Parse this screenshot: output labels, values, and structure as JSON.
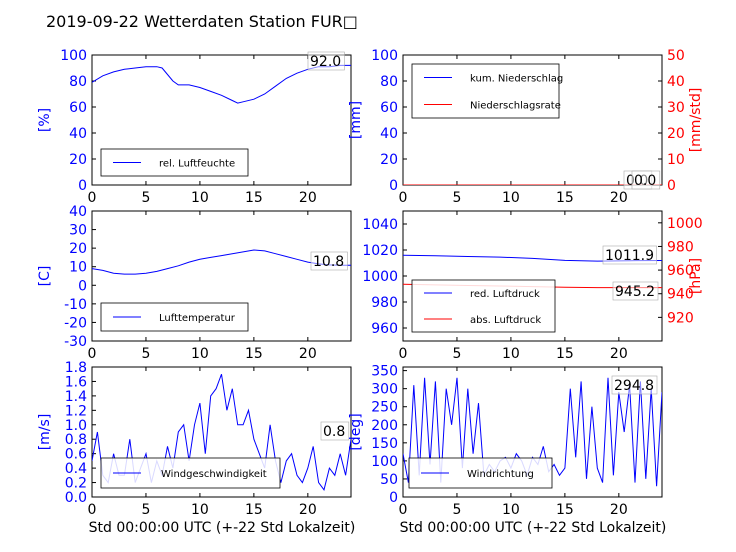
{
  "title": "2019-09-22 Wetterdaten Station FUR□",
  "xlabel": "Std 00:00:00 UTC (+-22 Std Lokalzeit)",
  "colors": {
    "blue": "#0000ff",
    "red": "#ff0000",
    "lightblue": "#8080ff"
  },
  "chart_data": [
    {
      "id": "humidity",
      "type": "line",
      "xlim": [
        0,
        24
      ],
      "xticks": [
        0,
        5,
        10,
        15,
        20
      ],
      "ylim": [
        0,
        100
      ],
      "yticks": [
        0,
        20,
        40,
        60,
        80,
        100
      ],
      "ylabel": "[%]",
      "legend_loc": "lower-left",
      "series": [
        {
          "name": "rel. Luftfeuchte",
          "color": "#0000ff",
          "x": [
            0,
            1,
            2,
            3,
            4,
            5,
            6,
            6.5,
            7,
            7.5,
            8,
            9,
            10,
            11,
            12,
            13,
            13.5,
            14,
            15,
            16,
            17,
            18,
            19,
            20,
            21,
            22,
            23,
            24
          ],
          "y": [
            79,
            84,
            87,
            89,
            90,
            91,
            91,
            90,
            85,
            80,
            77,
            77,
            75,
            72,
            69,
            65,
            63,
            64,
            66,
            70,
            76,
            82,
            86,
            89,
            91,
            91,
            92,
            92
          ]
        }
      ],
      "value_labels": [
        {
          "text": "92.0"
        }
      ]
    },
    {
      "id": "precip",
      "type": "line",
      "xlim": [
        0,
        24
      ],
      "xticks": [
        0,
        5,
        10,
        15,
        20
      ],
      "ylim": [
        0,
        100
      ],
      "yticks": [
        0,
        20,
        40,
        60,
        80,
        100
      ],
      "ylabel": "[mm]",
      "y2lim": [
        0,
        50
      ],
      "y2ticks": [
        0,
        10,
        20,
        30,
        40,
        50
      ],
      "y2label": "[mm/std]",
      "legend_loc": "upper-left",
      "series": [
        {
          "name": "kum. Niederschlag",
          "color": "#0000ff",
          "axis": "left",
          "x": [
            0,
            24
          ],
          "y": [
            0,
            0
          ]
        },
        {
          "name": "Niederschlagsrate",
          "color": "#ff0000",
          "axis": "right",
          "x": [
            0,
            24
          ],
          "y": [
            0,
            0
          ]
        }
      ],
      "value_labels": [
        {
          "text": "0.0"
        },
        {
          "text": "0.0"
        }
      ]
    },
    {
      "id": "temperature",
      "type": "line",
      "xlim": [
        0,
        24
      ],
      "xticks": [
        0,
        5,
        10,
        15,
        20
      ],
      "ylim": [
        -30,
        40
      ],
      "yticks": [
        -30,
        -20,
        -10,
        0,
        10,
        20,
        30,
        40
      ],
      "ylabel": "[C]",
      "legend_loc": "lower-left",
      "series": [
        {
          "name": "Lufttemperatur",
          "color": "#0000ff",
          "x": [
            0,
            1,
            2,
            3,
            4,
            5,
            6,
            7,
            8,
            9,
            10,
            11,
            12,
            13,
            14,
            15,
            16,
            17,
            18,
            19,
            20,
            21,
            22,
            23,
            24
          ],
          "y": [
            9,
            8,
            6.5,
            6,
            6,
            6.5,
            7.5,
            9,
            10.5,
            12.5,
            14,
            15,
            16,
            17,
            18,
            19,
            18.5,
            17,
            15.5,
            14,
            12.5,
            11.5,
            11,
            10.8,
            10.8
          ]
        }
      ],
      "value_labels": [
        {
          "text": "10.8"
        }
      ]
    },
    {
      "id": "pressure",
      "type": "line",
      "xlim": [
        0,
        24
      ],
      "xticks": [
        0,
        5,
        10,
        15,
        20
      ],
      "ylim": [
        950,
        1050
      ],
      "yticks": [
        960,
        980,
        1000,
        1020,
        1040
      ],
      "y2lim": [
        900,
        1010
      ],
      "y2ticks": [
        920,
        940,
        960,
        980,
        1000
      ],
      "y2label": "[hPa]",
      "legend_loc": "lower-left",
      "series": [
        {
          "name": "red. Luftdruck",
          "color": "#0000ff",
          "axis": "left",
          "x": [
            0,
            3,
            6,
            9,
            12,
            15,
            18,
            21,
            24
          ],
          "y": [
            1016,
            1015.5,
            1015,
            1014.5,
            1013.5,
            1012,
            1011.5,
            1011.8,
            1011.9
          ]
        },
        {
          "name": "abs. Luftdruck",
          "color": "#ff0000",
          "axis": "right",
          "x": [
            0,
            3,
            6,
            9,
            12,
            15,
            18,
            21,
            24
          ],
          "y": [
            948,
            947.5,
            947,
            946.5,
            946,
            945.5,
            945.2,
            945.2,
            945.2
          ]
        }
      ],
      "value_labels": [
        {
          "text": "1011.9"
        },
        {
          "text": "945.2"
        }
      ]
    },
    {
      "id": "windspeed",
      "type": "line",
      "xlim": [
        0,
        24
      ],
      "xticks": [
        0,
        5,
        10,
        15,
        20
      ],
      "ylim": [
        0,
        1.8
      ],
      "yticks": [
        0.0,
        0.2,
        0.4,
        0.6,
        0.8,
        1.0,
        1.2,
        1.4,
        1.6,
        1.8
      ],
      "ylabel": "[m/s]",
      "legend_loc": "lower-center",
      "series": [
        {
          "name": "Windgeschwindigkeit",
          "color": "#0000ff",
          "x": [
            0,
            0.5,
            1,
            1.5,
            2,
            2.5,
            3,
            3.5,
            4,
            4.5,
            5,
            5.5,
            6,
            6.5,
            7,
            7.5,
            8,
            8.5,
            9,
            9.5,
            10,
            10.5,
            11,
            11.5,
            12,
            12.5,
            13,
            13.5,
            14,
            14.5,
            15,
            15.5,
            16,
            16.5,
            17,
            17.5,
            18,
            18.5,
            19,
            19.5,
            20,
            20.5,
            21,
            21.5,
            22,
            22.5,
            23,
            23.5,
            24
          ],
          "y": [
            0.5,
            0.9,
            0.3,
            0.2,
            0.6,
            0.3,
            0.3,
            0.8,
            0.2,
            0.4,
            0.6,
            0.2,
            0.5,
            0.3,
            0.7,
            0.4,
            0.9,
            1.0,
            0.5,
            1.0,
            1.3,
            0.6,
            1.4,
            1.5,
            1.7,
            1.2,
            1.5,
            1.0,
            1.0,
            1.2,
            0.8,
            0.6,
            0.4,
            1.0,
            0.5,
            0.2,
            0.5,
            0.6,
            0.3,
            0.2,
            0.4,
            0.7,
            0.2,
            0.1,
            0.4,
            0.3,
            0.6,
            0.3,
            0.8
          ]
        }
      ],
      "value_labels": [
        {
          "text": "0.8"
        }
      ]
    },
    {
      "id": "winddir",
      "type": "line",
      "xlim": [
        0,
        24
      ],
      "xticks": [
        0,
        5,
        10,
        15,
        20
      ],
      "ylim": [
        0,
        360
      ],
      "yticks": [
        0,
        50,
        100,
        150,
        200,
        250,
        300,
        350
      ],
      "ylabel": "[deg]",
      "legend_loc": "lower-left",
      "series": [
        {
          "name": "Windrichtung",
          "color": "#0000ff",
          "x": [
            0,
            0.5,
            1,
            1.5,
            2,
            2.5,
            3,
            3.5,
            4,
            4.5,
            5,
            5.5,
            6,
            6.5,
            7,
            7.5,
            8,
            8.5,
            9,
            9.5,
            10,
            10.5,
            11,
            11.5,
            12,
            12.5,
            13,
            13.5,
            14,
            14.5,
            15,
            15.5,
            16,
            16.5,
            17,
            17.5,
            18,
            18.5,
            19,
            19.5,
            20,
            20.5,
            21,
            21.5,
            22,
            22.5,
            23,
            23.5,
            24
          ],
          "y": [
            120,
            40,
            310,
            60,
            330,
            90,
            320,
            40,
            300,
            200,
            330,
            80,
            300,
            120,
            260,
            60,
            90,
            70,
            100,
            110,
            80,
            120,
            100,
            60,
            110,
            90,
            140,
            70,
            90,
            60,
            80,
            300,
            110,
            320,
            50,
            250,
            80,
            40,
            330,
            60,
            290,
            180,
            310,
            40,
            320,
            50,
            300,
            30,
            290
          ]
        }
      ],
      "value_labels": [
        {
          "text": "294.8"
        }
      ]
    }
  ]
}
